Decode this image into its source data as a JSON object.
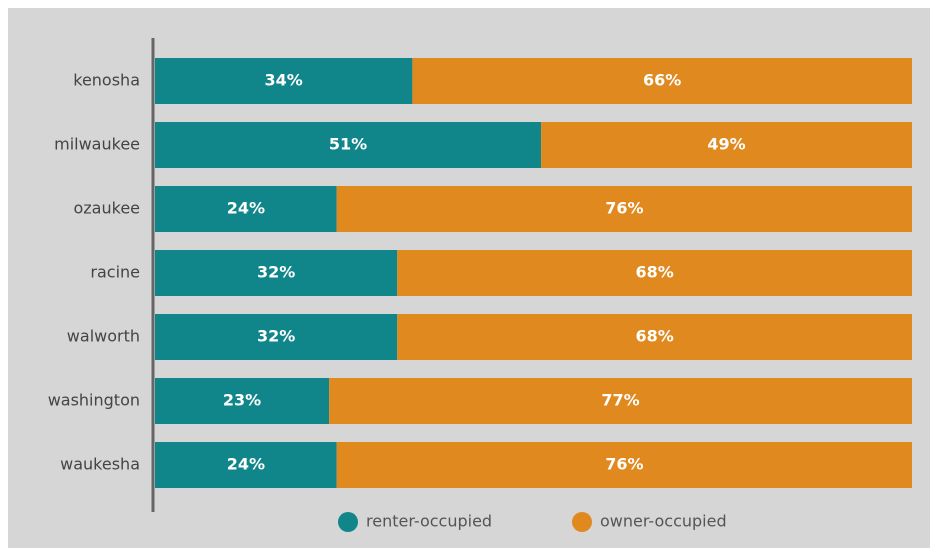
{
  "chart_data": {
    "type": "bar",
    "orientation": "horizontal",
    "stacked": true,
    "categories": [
      "kenosha",
      "milwaukee",
      "ozaukee",
      "racine",
      "walworth",
      "washington",
      "waukesha"
    ],
    "series": [
      {
        "name": "renter-occupied",
        "color": "#11868a",
        "values": [
          34,
          51,
          24,
          32,
          32,
          23,
          24
        ],
        "value_labels": [
          "34%",
          "51%",
          "24%",
          "32%",
          "32%",
          "23%",
          "24%"
        ]
      },
      {
        "name": "owner-occupied",
        "color": "#e0891f",
        "values": [
          66,
          49,
          76,
          68,
          68,
          77,
          76
        ],
        "value_labels": [
          "66%",
          "49%",
          "76%",
          "68%",
          "68%",
          "77%",
          "76%"
        ]
      }
    ],
    "xlim": [
      0,
      100
    ],
    "legend": "bottom"
  }
}
